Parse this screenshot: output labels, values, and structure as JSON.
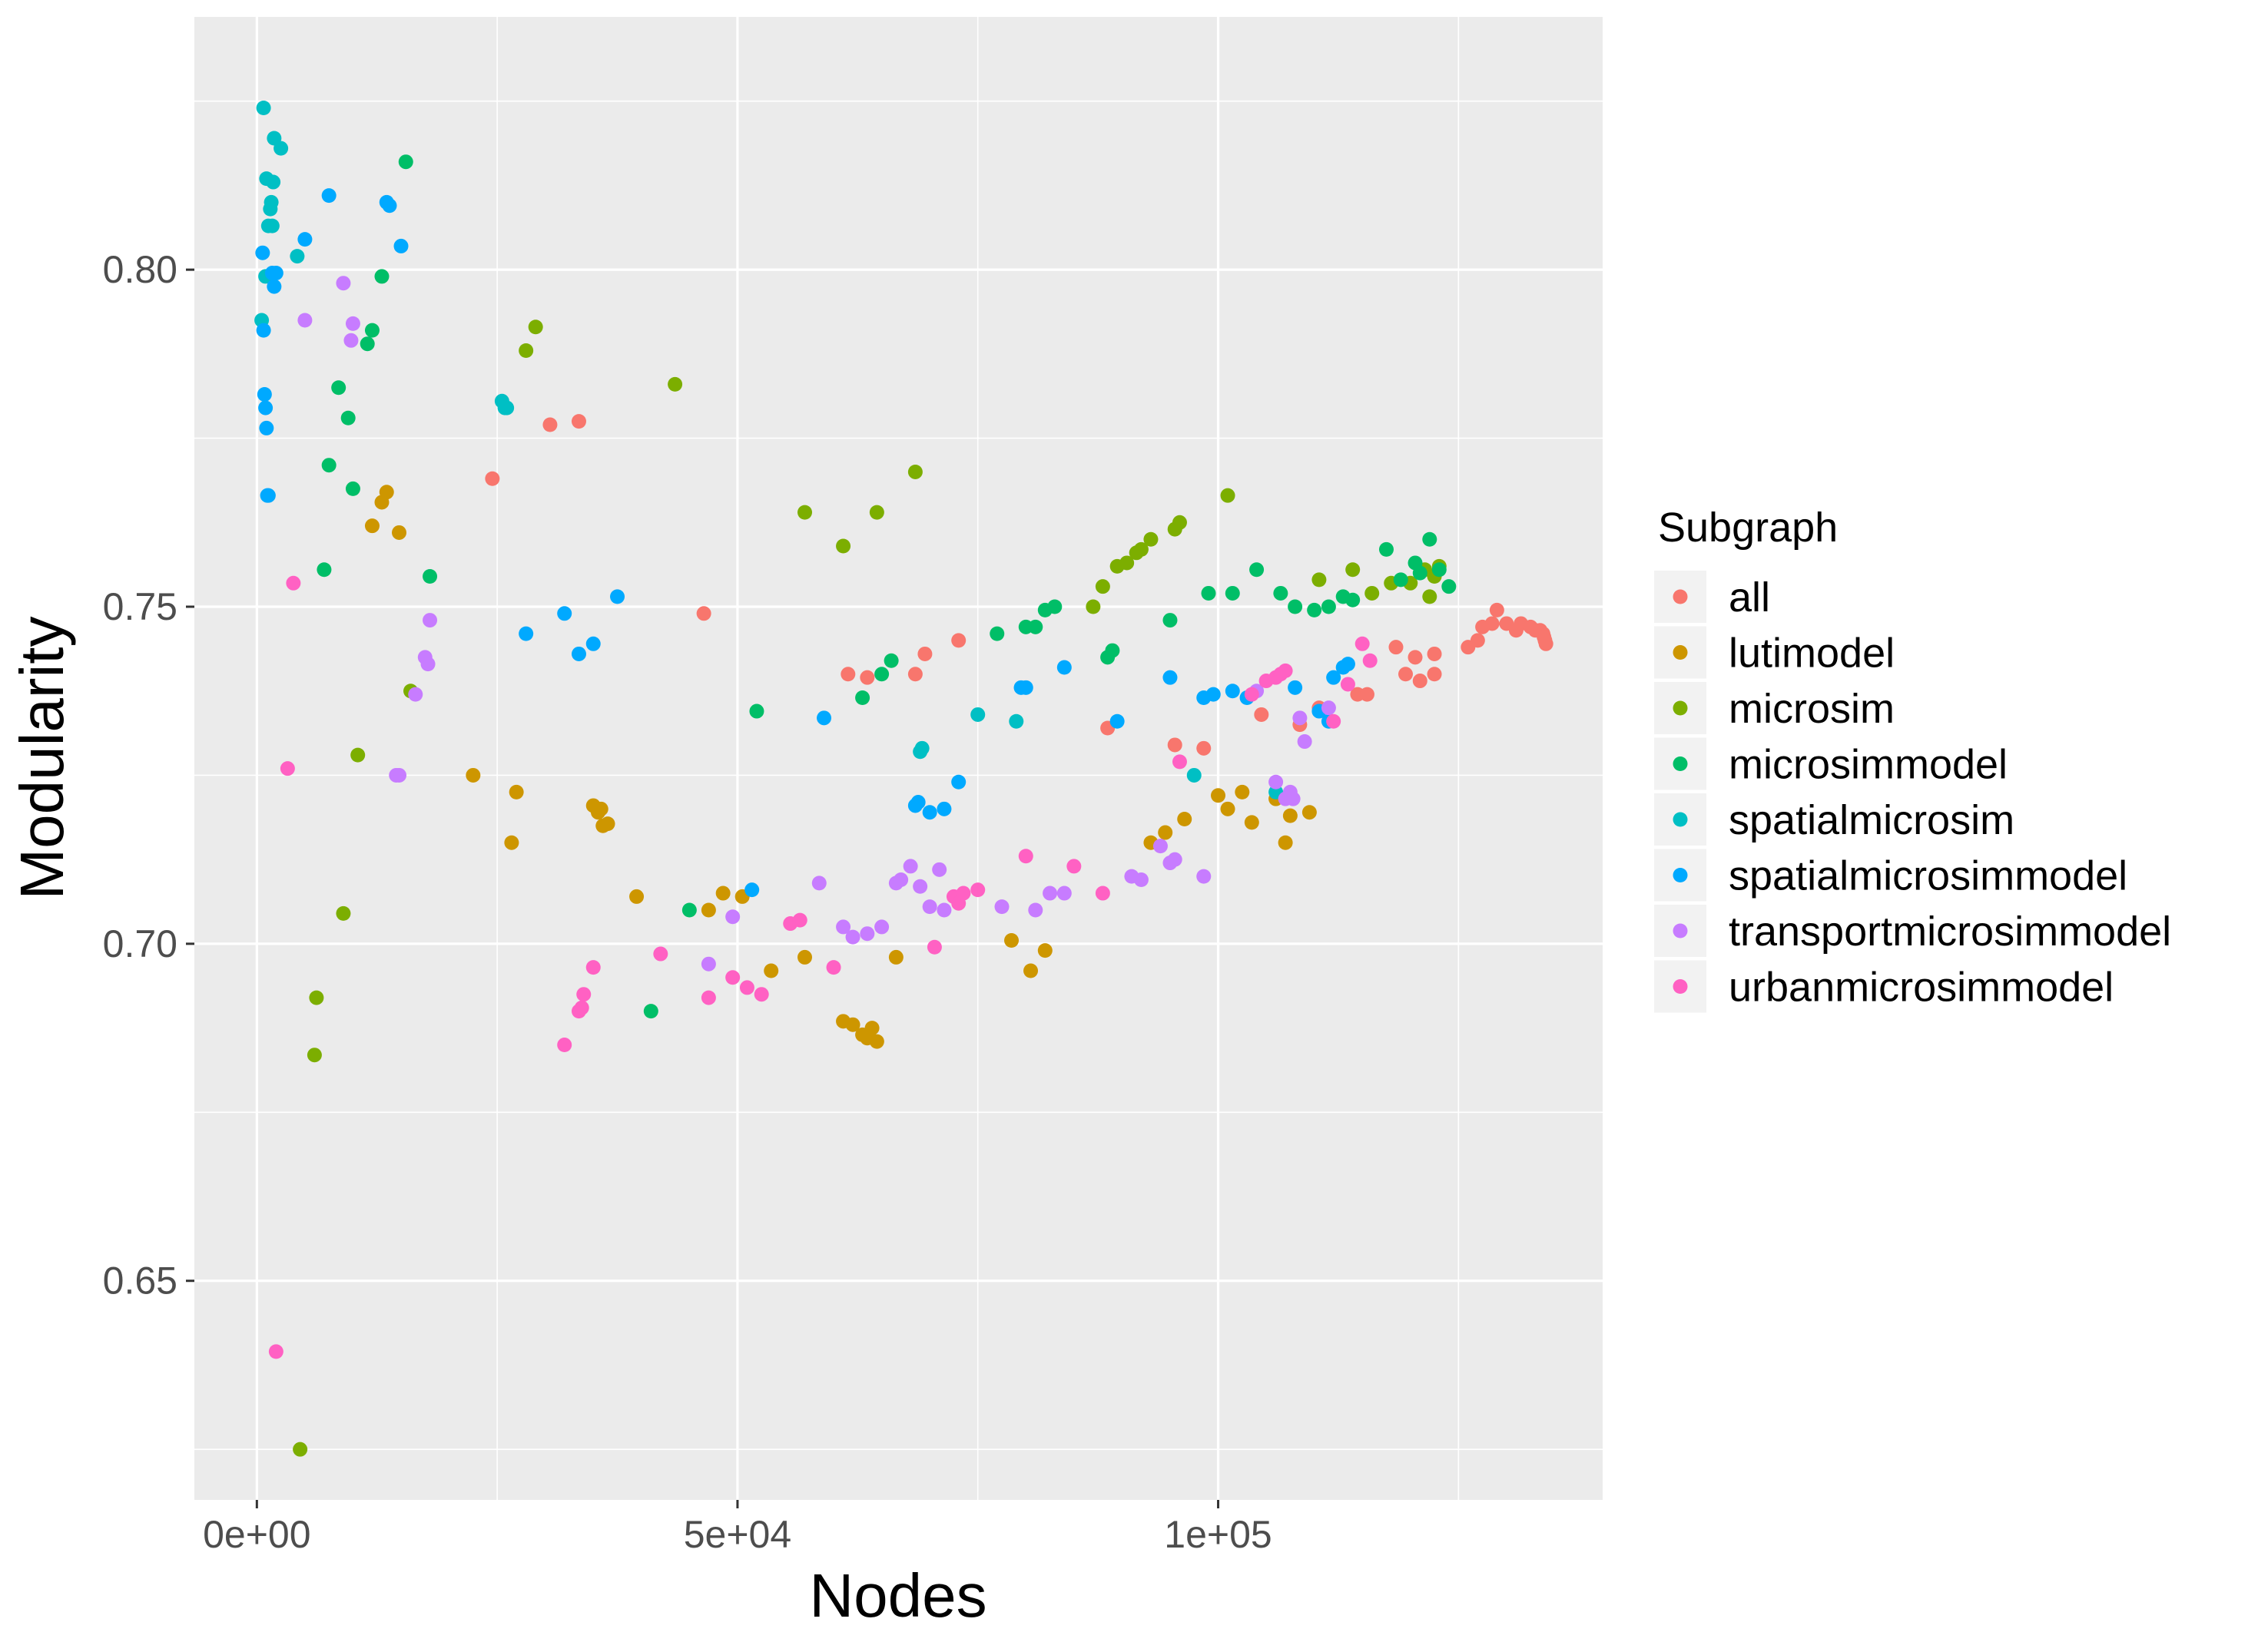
{
  "chart_data": {
    "type": "scatter",
    "xlabel": "Nodes",
    "ylabel": "Modularity",
    "xlim": [
      -6500,
      140000
    ],
    "ylim": [
      0.6175,
      0.8375
    ],
    "x_ticks": [
      0,
      50000,
      100000
    ],
    "x_tick_labels": [
      "0e+00",
      "5e+04",
      "1e+05"
    ],
    "y_ticks": [
      0.65,
      0.7,
      0.75,
      0.8
    ],
    "y_tick_labels": [
      "0.65",
      "0.70",
      "0.75",
      "0.80"
    ],
    "grid": true,
    "legend": {
      "title": "Subgraph",
      "position": "right"
    },
    "series": [
      {
        "name": "all",
        "color": "#F8766D",
        "points": [
          [
            24500,
            0.769
          ],
          [
            30500,
            0.777
          ],
          [
            33500,
            0.7775
          ],
          [
            46500,
            0.749
          ],
          [
            61500,
            0.74
          ],
          [
            63500,
            0.7395
          ],
          [
            68500,
            0.74
          ],
          [
            69500,
            0.743
          ],
          [
            73000,
            0.745
          ],
          [
            88500,
            0.732
          ],
          [
            95500,
            0.7295
          ],
          [
            98500,
            0.729
          ],
          [
            104500,
            0.734
          ],
          [
            108500,
            0.7325
          ],
          [
            110500,
            0.735
          ],
          [
            114500,
            0.737
          ],
          [
            115500,
            0.737
          ],
          [
            118500,
            0.744
          ],
          [
            119500,
            0.74
          ],
          [
            120500,
            0.7425
          ],
          [
            121000,
            0.739
          ],
          [
            122500,
            0.743
          ],
          [
            122500,
            0.74
          ],
          [
            126000,
            0.744
          ],
          [
            127000,
            0.745
          ],
          [
            127500,
            0.747
          ],
          [
            128500,
            0.7475
          ],
          [
            129000,
            0.7495
          ],
          [
            130000,
            0.7475
          ],
          [
            131000,
            0.7465
          ],
          [
            131500,
            0.7475
          ],
          [
            132500,
            0.747
          ],
          [
            133000,
            0.7465
          ],
          [
            133500,
            0.7465
          ],
          [
            133800,
            0.746
          ],
          [
            133900,
            0.7455
          ],
          [
            134000,
            0.745
          ],
          [
            134100,
            0.7445
          ]
        ]
      },
      {
        "name": "lutimodel",
        "color": "#CD9600",
        "points": [
          [
            12000,
            0.762
          ],
          [
            13000,
            0.7655
          ],
          [
            13500,
            0.767
          ],
          [
            14800,
            0.761
          ],
          [
            22500,
            0.725
          ],
          [
            26500,
            0.715
          ],
          [
            27000,
            0.7225
          ],
          [
            35000,
            0.7205
          ],
          [
            35500,
            0.7195
          ],
          [
            35800,
            0.72
          ],
          [
            36000,
            0.7175
          ],
          [
            36500,
            0.7178
          ],
          [
            39500,
            0.707
          ],
          [
            47000,
            0.705
          ],
          [
            48500,
            0.7075
          ],
          [
            50500,
            0.707
          ],
          [
            53500,
            0.696
          ],
          [
            57000,
            0.698
          ],
          [
            61000,
            0.6885
          ],
          [
            62000,
            0.688
          ],
          [
            63000,
            0.6865
          ],
          [
            63500,
            0.686
          ],
          [
            64000,
            0.6875
          ],
          [
            64500,
            0.6855
          ],
          [
            66500,
            0.698
          ],
          [
            78500,
            0.7005
          ],
          [
            80500,
            0.696
          ],
          [
            82000,
            0.699
          ],
          [
            93000,
            0.715
          ],
          [
            94500,
            0.7165
          ],
          [
            96500,
            0.7185
          ],
          [
            100000,
            0.722
          ],
          [
            101000,
            0.72
          ],
          [
            102500,
            0.7225
          ],
          [
            103500,
            0.718
          ],
          [
            106000,
            0.7215
          ],
          [
            107000,
            0.715
          ],
          [
            107500,
            0.719
          ],
          [
            109500,
            0.7195
          ]
        ]
      },
      {
        "name": "microsim",
        "color": "#7CAE00",
        "points": [
          [
            4500,
            0.625
          ],
          [
            6000,
            0.6835
          ],
          [
            6200,
            0.692
          ],
          [
            9000,
            0.7045
          ],
          [
            10500,
            0.728
          ],
          [
            16000,
            0.7375
          ],
          [
            28000,
            0.788
          ],
          [
            29000,
            0.7915
          ],
          [
            43500,
            0.783
          ],
          [
            57000,
            0.764
          ],
          [
            61000,
            0.759
          ],
          [
            64500,
            0.764
          ],
          [
            68500,
            0.77
          ],
          [
            87000,
            0.75
          ],
          [
            88000,
            0.753
          ],
          [
            89500,
            0.756
          ],
          [
            90500,
            0.7565
          ],
          [
            91500,
            0.758
          ],
          [
            92000,
            0.7585
          ],
          [
            93000,
            0.76
          ],
          [
            95500,
            0.7615
          ],
          [
            96000,
            0.7625
          ],
          [
            101000,
            0.7665
          ],
          [
            110500,
            0.754
          ],
          [
            114000,
            0.7555
          ],
          [
            116000,
            0.752
          ],
          [
            118000,
            0.7535
          ],
          [
            120000,
            0.7535
          ],
          [
            121500,
            0.7555
          ],
          [
            122000,
            0.7515
          ],
          [
            122500,
            0.7545
          ],
          [
            123000,
            0.756
          ]
        ]
      },
      {
        "name": "microsimmodel",
        "color": "#00BE67",
        "points": [
          [
            7000,
            0.7555
          ],
          [
            7500,
            0.771
          ],
          [
            8500,
            0.7825
          ],
          [
            9500,
            0.778
          ],
          [
            10000,
            0.7675
          ],
          [
            11500,
            0.789
          ],
          [
            12000,
            0.791
          ],
          [
            13000,
            0.799
          ],
          [
            15500,
            0.816
          ],
          [
            18000,
            0.7545
          ],
          [
            41000,
            0.69
          ],
          [
            45000,
            0.705
          ],
          [
            52000,
            0.7345
          ],
          [
            63000,
            0.7365
          ],
          [
            65000,
            0.74
          ],
          [
            66000,
            0.742
          ],
          [
            77000,
            0.746
          ],
          [
            80000,
            0.747
          ],
          [
            81000,
            0.747
          ],
          [
            82000,
            0.7495
          ],
          [
            83000,
            0.75
          ],
          [
            88500,
            0.7425
          ],
          [
            89000,
            0.7435
          ],
          [
            95000,
            0.748
          ],
          [
            99000,
            0.752
          ],
          [
            101500,
            0.752
          ],
          [
            104000,
            0.7555
          ],
          [
            106500,
            0.752
          ],
          [
            108000,
            0.75
          ],
          [
            110000,
            0.7495
          ],
          [
            111500,
            0.75
          ],
          [
            113000,
            0.7515
          ],
          [
            114000,
            0.751
          ],
          [
            117500,
            0.7585
          ],
          [
            119000,
            0.754
          ],
          [
            120500,
            0.7565
          ],
          [
            121000,
            0.755
          ],
          [
            122000,
            0.76
          ],
          [
            123000,
            0.7555
          ],
          [
            124000,
            0.753
          ]
        ]
      },
      {
        "name": "spatialmicrosim",
        "color": "#00BFC4",
        "points": [
          [
            500,
            0.7925
          ],
          [
            700,
            0.824
          ],
          [
            900,
            0.799
          ],
          [
            1000,
            0.8135
          ],
          [
            1200,
            0.8065
          ],
          [
            1400,
            0.809
          ],
          [
            1500,
            0.81
          ],
          [
            1600,
            0.8065
          ],
          [
            1700,
            0.813
          ],
          [
            1800,
            0.8195
          ],
          [
            2500,
            0.818
          ],
          [
            4200,
            0.802
          ],
          [
            25500,
            0.7805
          ],
          [
            25800,
            0.7795
          ],
          [
            26000,
            0.7795
          ],
          [
            69000,
            0.7285
          ],
          [
            69200,
            0.729
          ],
          [
            75000,
            0.734
          ],
          [
            79000,
            0.733
          ],
          [
            97500,
            0.725
          ],
          [
            106000,
            0.7225
          ]
        ]
      },
      {
        "name": "spatialmicrosimmodel",
        "color": "#00A9FF",
        "points": [
          [
            600,
            0.8025
          ],
          [
            700,
            0.791
          ],
          [
            800,
            0.7815
          ],
          [
            900,
            0.7795
          ],
          [
            1000,
            0.7765
          ],
          [
            1100,
            0.7665
          ],
          [
            1200,
            0.7665
          ],
          [
            1600,
            0.7995
          ],
          [
            1800,
            0.7975
          ],
          [
            2000,
            0.7995
          ],
          [
            5000,
            0.8045
          ],
          [
            7500,
            0.811
          ],
          [
            13500,
            0.81
          ],
          [
            13800,
            0.8095
          ],
          [
            15000,
            0.8035
          ],
          [
            28000,
            0.746
          ],
          [
            32000,
            0.749
          ],
          [
            33500,
            0.743
          ],
          [
            35000,
            0.7445
          ],
          [
            37500,
            0.7515
          ],
          [
            51500,
            0.708
          ],
          [
            59000,
            0.7335
          ],
          [
            68500,
            0.7205
          ],
          [
            68800,
            0.721
          ],
          [
            70000,
            0.7195
          ],
          [
            71500,
            0.72
          ],
          [
            73000,
            0.724
          ],
          [
            79500,
            0.738
          ],
          [
            80000,
            0.738
          ],
          [
            84000,
            0.741
          ],
          [
            89500,
            0.733
          ],
          [
            95000,
            0.7395
          ],
          [
            98500,
            0.7365
          ],
          [
            99500,
            0.737
          ],
          [
            101500,
            0.7375
          ],
          [
            103000,
            0.7365
          ],
          [
            108000,
            0.738
          ],
          [
            110500,
            0.7345
          ],
          [
            111500,
            0.733
          ],
          [
            112000,
            0.7395
          ],
          [
            113000,
            0.741
          ],
          [
            113500,
            0.7415
          ]
        ]
      },
      {
        "name": "transportmicrosimmodel",
        "color": "#C77CFF",
        "points": [
          [
            5000,
            0.7925
          ],
          [
            9000,
            0.798
          ],
          [
            9800,
            0.7895
          ],
          [
            10000,
            0.792
          ],
          [
            14500,
            0.725
          ],
          [
            14800,
            0.725
          ],
          [
            16500,
            0.737
          ],
          [
            17500,
            0.7425
          ],
          [
            17800,
            0.7415
          ],
          [
            18000,
            0.748
          ],
          [
            47000,
            0.697
          ],
          [
            49500,
            0.704
          ],
          [
            58500,
            0.709
          ],
          [
            61000,
            0.7025
          ],
          [
            62000,
            0.701
          ],
          [
            63500,
            0.7015
          ],
          [
            65000,
            0.7025
          ],
          [
            66500,
            0.709
          ],
          [
            67000,
            0.7095
          ],
          [
            68000,
            0.7115
          ],
          [
            69000,
            0.7085
          ],
          [
            70000,
            0.7055
          ],
          [
            71000,
            0.711
          ],
          [
            71500,
            0.705
          ],
          [
            77500,
            0.7055
          ],
          [
            81000,
            0.705
          ],
          [
            82500,
            0.7075
          ],
          [
            84000,
            0.7075
          ],
          [
            91000,
            0.71
          ],
          [
            92000,
            0.7095
          ],
          [
            94000,
            0.7145
          ],
          [
            95000,
            0.712
          ],
          [
            95500,
            0.7125
          ],
          [
            98500,
            0.71
          ],
          [
            104000,
            0.7375
          ],
          [
            106000,
            0.724
          ],
          [
            107000,
            0.7215
          ],
          [
            107500,
            0.7225
          ],
          [
            107800,
            0.7215
          ],
          [
            108500,
            0.7335
          ],
          [
            109000,
            0.73
          ],
          [
            111500,
            0.735
          ]
        ]
      },
      {
        "name": "urbanmicrosimmodel",
        "color": "#FF61C3",
        "points": [
          [
            2000,
            0.6395
          ],
          [
            3200,
            0.726
          ],
          [
            3800,
            0.7535
          ],
          [
            32000,
            0.685
          ],
          [
            33500,
            0.69
          ],
          [
            33800,
            0.6905
          ],
          [
            34000,
            0.6925
          ],
          [
            35000,
            0.6965
          ],
          [
            42000,
            0.6985
          ],
          [
            47000,
            0.692
          ],
          [
            49500,
            0.695
          ],
          [
            51000,
            0.6935
          ],
          [
            52500,
            0.6925
          ],
          [
            55500,
            0.703
          ],
          [
            56500,
            0.7035
          ],
          [
            60000,
            0.6965
          ],
          [
            70500,
            0.6995
          ],
          [
            72500,
            0.707
          ],
          [
            73000,
            0.706
          ],
          [
            73500,
            0.7075
          ],
          [
            75000,
            0.708
          ],
          [
            80000,
            0.713
          ],
          [
            85000,
            0.7115
          ],
          [
            88000,
            0.7075
          ],
          [
            96000,
            0.727
          ],
          [
            103500,
            0.737
          ],
          [
            105000,
            0.739
          ],
          [
            106000,
            0.7395
          ],
          [
            106500,
            0.74
          ],
          [
            107000,
            0.7405
          ],
          [
            113500,
            0.7385
          ],
          [
            115000,
            0.7445
          ],
          [
            115800,
            0.742
          ],
          [
            112000,
            0.733
          ]
        ]
      }
    ]
  }
}
